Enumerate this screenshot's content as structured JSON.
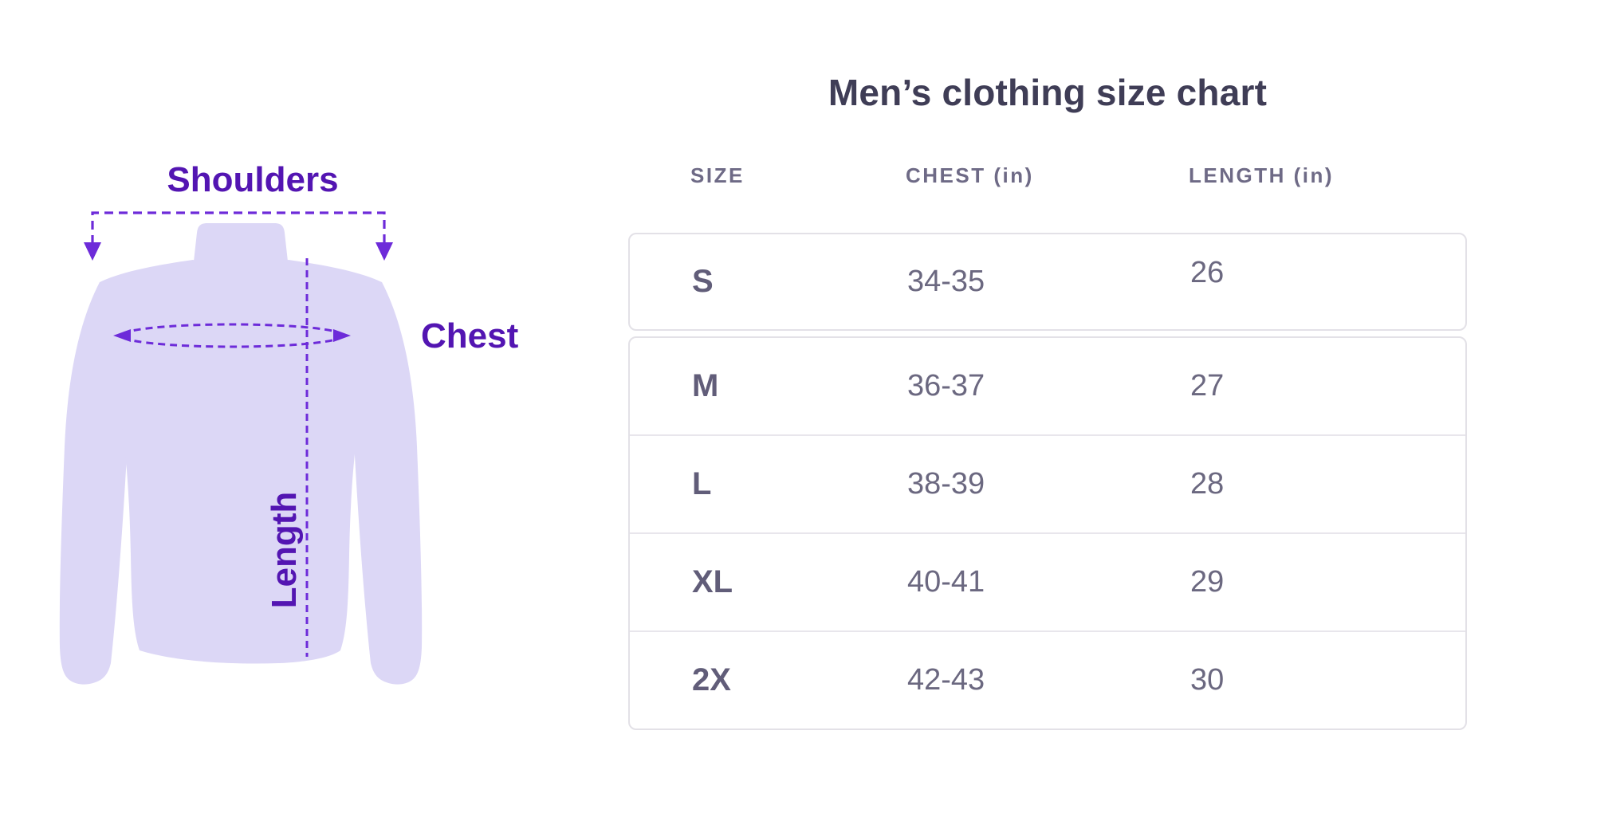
{
  "illustration": {
    "labels": {
      "shoulders": "Shoulders",
      "chest": "Chest",
      "length": "Length"
    }
  },
  "chart_data": {
    "type": "table",
    "title": "Men’s clothing size chart",
    "columns": [
      "SIZE",
      "CHEST (in)",
      "LENGTH (in)"
    ],
    "rows": [
      [
        "S",
        "34-35",
        "26"
      ],
      [
        "M",
        "36-37",
        "27"
      ],
      [
        "L",
        "38-39",
        "28"
      ],
      [
        "XL",
        "40-41",
        "29"
      ],
      [
        "2X",
        "42-43",
        "30"
      ]
    ],
    "units": "inches",
    "layout": {
      "header_position": "top",
      "grouping": "first row in own card, rows 2-5 share a card"
    }
  },
  "colors": {
    "accent": "#6d2bd9",
    "label": "#5315b2",
    "shirt": "#dcd7f6",
    "title": "#3f3d56",
    "header": "#6e6a86",
    "cell": "#6b6880",
    "size_cell": "#615d79",
    "border": "#e3e1e7",
    "divider": "#e8e6ec",
    "background": "#ffffff"
  }
}
